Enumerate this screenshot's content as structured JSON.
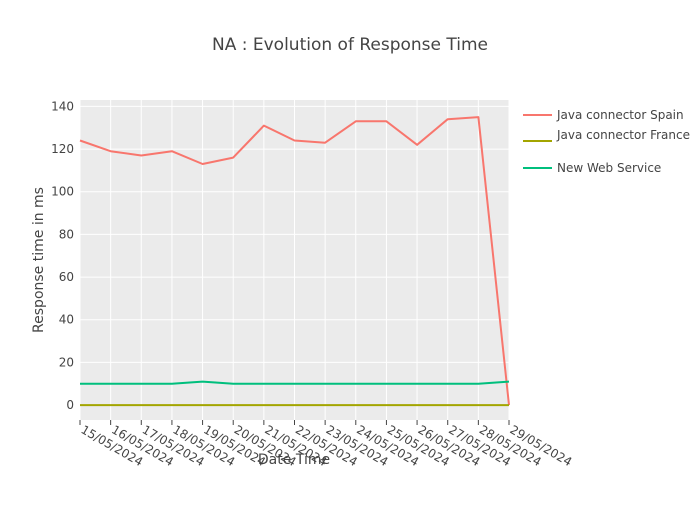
{
  "chart_data": {
    "type": "line",
    "title": "NA : Evolution of  Response Time",
    "xlabel": "Date Time",
    "ylabel": "Response time in ms",
    "x": [
      "15/05/2024",
      "16/05/2024",
      "17/05/2024",
      "18/05/2024",
      "19/05/2024",
      "20/05/2024",
      "21/05/2024",
      "22/05/2024",
      "23/05/2024",
      "24/05/2024",
      "25/05/2024",
      "26/05/2024",
      "27/05/2024",
      "28/05/2024",
      "29/05/2024"
    ],
    "ylim": [
      -7,
      143
    ],
    "yticks": [
      0,
      20,
      40,
      60,
      80,
      100,
      120,
      140
    ],
    "grid": true,
    "legend_position": "right",
    "plot_background": "#ebebeb",
    "series": [
      {
        "name": "Java connector Spain",
        "color": "#f8766d",
        "values": [
          124,
          119,
          117,
          119,
          113,
          116,
          131,
          124,
          123,
          133,
          133,
          122,
          134,
          135,
          0
        ]
      },
      {
        "name": "Java connector France",
        "color": "#a3a500",
        "values": [
          0,
          0,
          0,
          0,
          0,
          0,
          0,
          0,
          0,
          0,
          0,
          0,
          0,
          0,
          0
        ]
      },
      {
        "name": "New Web Service",
        "color": "#00bf7d",
        "values": [
          10,
          10,
          10,
          10,
          11,
          10,
          10,
          10,
          10,
          10,
          10,
          10,
          10,
          10,
          11
        ]
      }
    ]
  }
}
